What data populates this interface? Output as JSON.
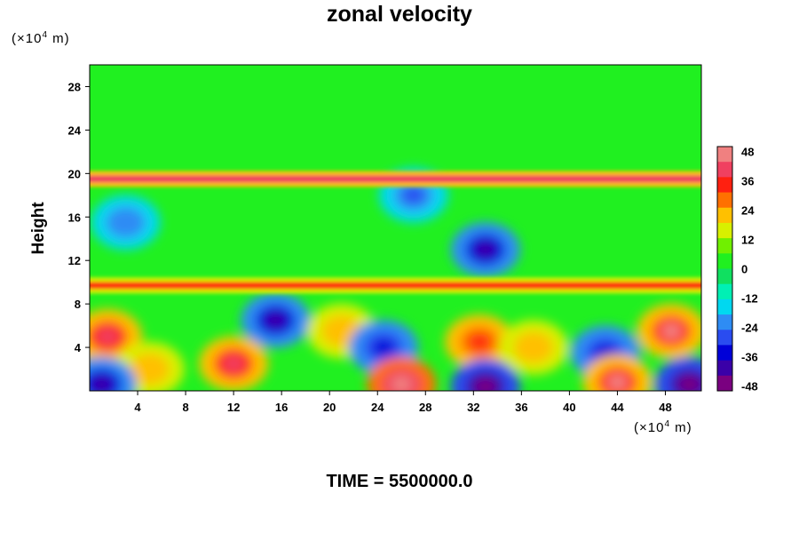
{
  "chart_data": {
    "type": "heatmap",
    "title": "zonal velocity",
    "ylabel": "Height",
    "y_unit": {
      "prefix": "(×10",
      "exp": "4",
      "suffix": " m)"
    },
    "x_unit": {
      "prefix": "(×10",
      "exp": "4",
      "suffix": " m)"
    },
    "xlim": [
      0,
      51
    ],
    "ylim": [
      0,
      30
    ],
    "xticks": [
      4,
      8,
      12,
      16,
      20,
      24,
      28,
      32,
      36,
      40,
      44,
      48
    ],
    "yticks": [
      4,
      8,
      12,
      16,
      20,
      24,
      28
    ],
    "colorbar": {
      "range": [
        -50,
        50
      ],
      "ticks": [
        48,
        36,
        24,
        12,
        0,
        -12,
        -24,
        -36,
        -48
      ],
      "colors": [
        "#7a0080",
        "#3a00a8",
        "#0000d8",
        "#2a4cf0",
        "#2e8cf4",
        "#00d8f0",
        "#00f0b4",
        "#10e060",
        "#20f020",
        "#70f000",
        "#d8f000",
        "#ffc000",
        "#ff7000",
        "#ff2010",
        "#f04060",
        "#f08080"
      ]
    },
    "features": [
      {
        "x": 1.5,
        "y": 5.0,
        "value": 42
      },
      {
        "x": 5.0,
        "y": 2.0,
        "value": 24
      },
      {
        "x": 12.0,
        "y": 2.5,
        "value": 40
      },
      {
        "x": 15.5,
        "y": 6.5,
        "value": -40
      },
      {
        "x": 21.0,
        "y": 5.5,
        "value": 24
      },
      {
        "x": 24.5,
        "y": 4.0,
        "value": -36
      },
      {
        "x": 26.0,
        "y": 0.6,
        "value": 48
      },
      {
        "x": 32.5,
        "y": 4.5,
        "value": 36
      },
      {
        "x": 37.0,
        "y": 4.0,
        "value": 24
      },
      {
        "x": 43.0,
        "y": 3.5,
        "value": -36
      },
      {
        "x": 48.5,
        "y": 5.5,
        "value": 44
      },
      {
        "x": 33.0,
        "y": 0.4,
        "value": -50
      },
      {
        "x": 50.0,
        "y": 0.6,
        "value": -48
      },
      {
        "x": 44.0,
        "y": 0.8,
        "value": 44
      },
      {
        "x": 1.0,
        "y": 0.6,
        "value": -42
      },
      {
        "x": 33.0,
        "y": 13.0,
        "value": -40
      },
      {
        "x": 27.0,
        "y": 18.0,
        "value": -30
      },
      {
        "x": 3.0,
        "y": 15.5,
        "value": -24
      }
    ],
    "bands": [
      {
        "y": 19.5,
        "value": 38
      },
      {
        "y": 9.7,
        "value": 32
      }
    ]
  },
  "footer": {
    "time_label": "TIME = 5500000.0"
  }
}
